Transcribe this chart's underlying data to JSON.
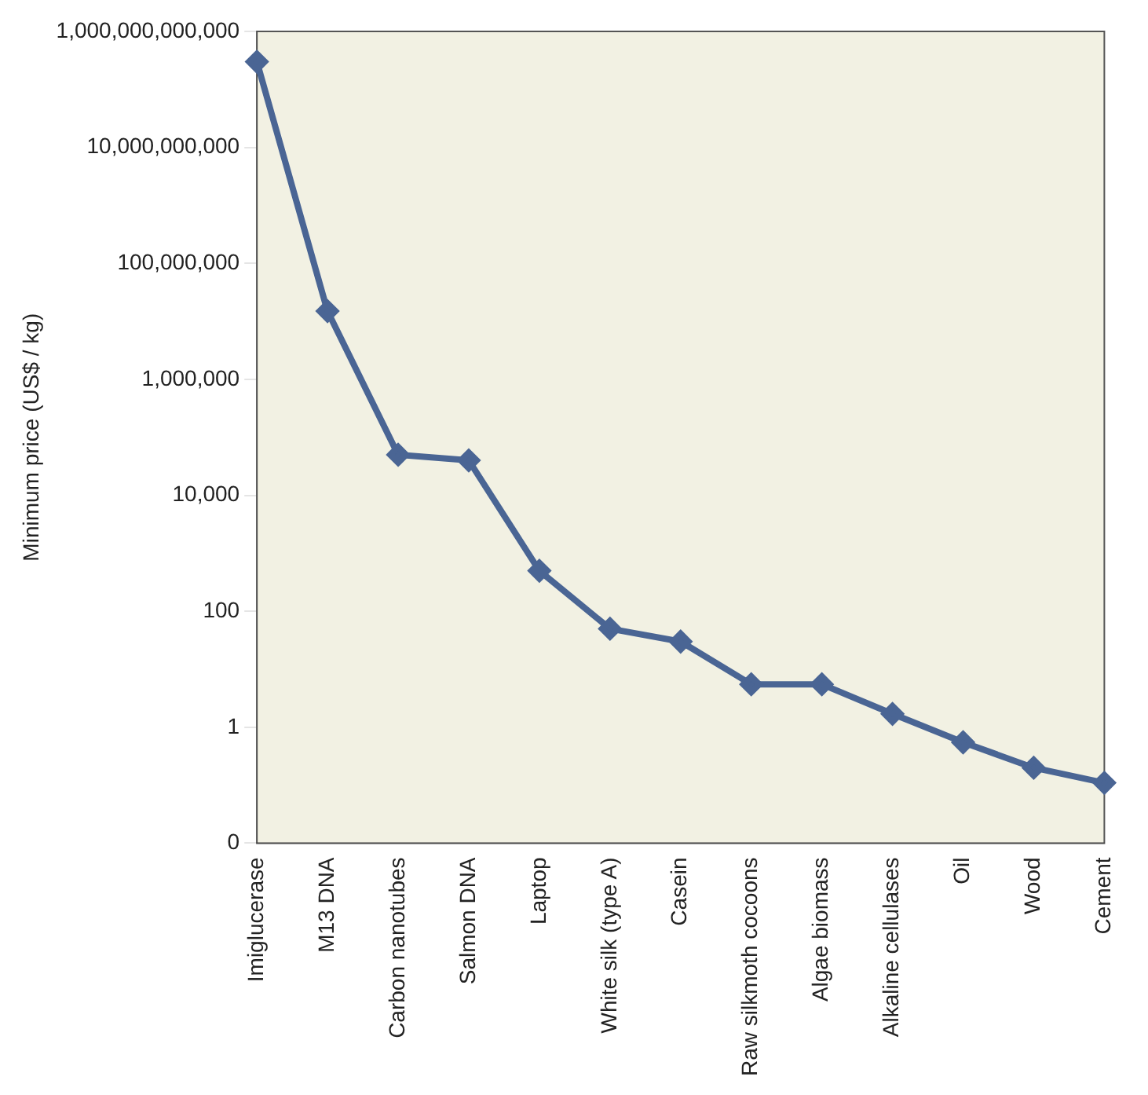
{
  "chart_data": {
    "type": "line",
    "ylabel": "Minimum price (US$ / kg)",
    "categories": [
      "Imiglucerase",
      "M13 DNA",
      "Carbon nanotubes",
      "Salmon DNA",
      "Laptop",
      "White silk (type A)",
      "Casein",
      "Raw silkmoth cocoons",
      "Algae biomass",
      "Alkaline cellulases",
      "Oil",
      "Wood",
      "Cement"
    ],
    "series": [
      {
        "color": "#4a6594",
        "values": [
          300000000000,
          15000000,
          50000,
          40000,
          500,
          50,
          30,
          5.5,
          5.5,
          1.7,
          0.55,
          0.2,
          0.11
        ]
      }
    ],
    "log": true,
    "ylim": [
      0.01,
      1000000000000
    ],
    "yticks": [
      {
        "value": 0.01,
        "label": "0"
      },
      {
        "value": 1,
        "label": "1"
      },
      {
        "value": 100,
        "label": "100"
      },
      {
        "value": 10000,
        "label": "10,000"
      },
      {
        "value": 1000000,
        "label": "1,000,000"
      },
      {
        "value": 100000000,
        "label": "100,000,000"
      },
      {
        "value": 10000000000,
        "label": "10,000,000,000"
      },
      {
        "value": 1000000000000,
        "label": "1,000,000,000,000"
      }
    ],
    "grid": false,
    "legend": false,
    "marker": "diamond",
    "line_style": "solid"
  }
}
